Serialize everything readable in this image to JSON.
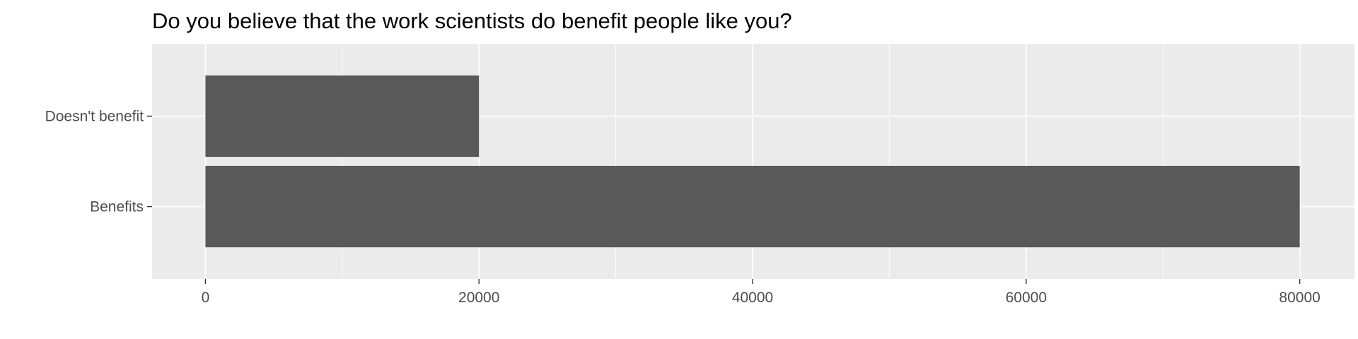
{
  "chart_data": {
    "type": "bar",
    "orientation": "horizontal",
    "title": "Do you believe that the work scientists do benefit people like you?",
    "xlabel": "",
    "ylabel": "",
    "categories": [
      "Doesn't benefit",
      "Benefits"
    ],
    "values": [
      20000,
      80000
    ],
    "xlim": [
      -3900,
      84000
    ],
    "xticks": [
      0,
      20000,
      40000,
      60000,
      80000
    ],
    "xtick_labels": [
      "0",
      "20000",
      "40000",
      "60000",
      "80000"
    ],
    "grid": true,
    "legend": "none",
    "colors": {
      "panel": "#ebebeb",
      "grid": "#ffffff",
      "bar": "#595959",
      "text": "#4d4d4d"
    }
  }
}
